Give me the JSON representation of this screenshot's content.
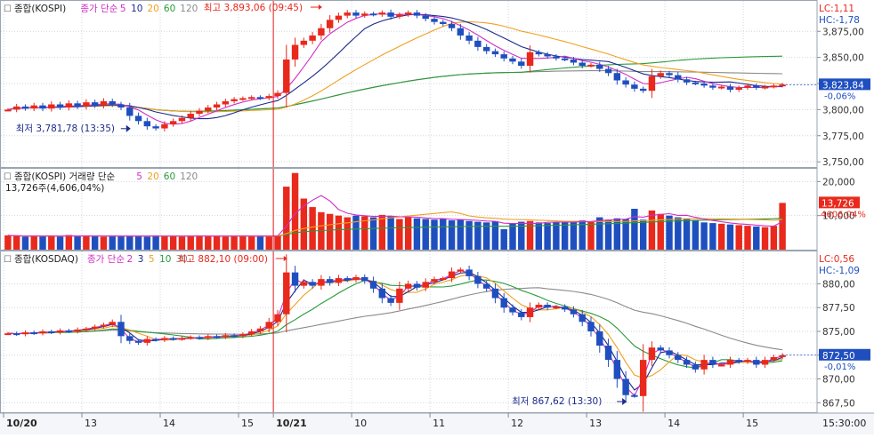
{
  "colors": {
    "up": "#e8291c",
    "down": "#1f4fbf",
    "ma5": "#d12ec7",
    "ma10": "#1c2a8c",
    "ma20": "#f0a020",
    "ma60": "#2a9a3a",
    "ma120": "#8a8a8a",
    "grid": "#cfd6e0",
    "marker": "#e41a1a"
  },
  "x_axis": {
    "labels": [
      {
        "text": "10/20",
        "x": 0,
        "bold": true
      },
      {
        "text": "13",
        "x": 9
      },
      {
        "text": "14",
        "x": 18
      },
      {
        "text": "15",
        "x": 27
      },
      {
        "text": "10/21",
        "x": 31,
        "bold": true
      },
      {
        "text": "10",
        "x": 40
      },
      {
        "text": "11",
        "x": 49
      },
      {
        "text": "12",
        "x": 58
      },
      {
        "text": "13",
        "x": 67
      },
      {
        "text": "14",
        "x": 76
      },
      {
        "text": "15",
        "x": 85
      }
    ],
    "end_time": "15:30:00"
  },
  "chart_data": [
    {
      "type": "candlestick",
      "title": "종합(KOSPI)",
      "legend": [
        {
          "text": "종가 단순",
          "color": "#d12ec7"
        },
        {
          "text": "5",
          "color": "#d12ec7"
        },
        {
          "text": "10",
          "color": "#1c2a8c"
        },
        {
          "text": "20",
          "color": "#f0a020"
        },
        {
          "text": "60",
          "color": "#2a9a3a"
        },
        {
          "text": "120",
          "color": "#8a8a8a"
        }
      ],
      "lc": "LC:1,11",
      "hc": "HC:-1,78",
      "ylim": [
        3745,
        3905
      ],
      "y_ticks": [
        {
          "v": 3750,
          "t": "3,750,00"
        },
        {
          "v": 3775,
          "t": "3,775,00"
        },
        {
          "v": 3800,
          "t": "3,800,00"
        },
        {
          "v": 3825,
          "t": "3,825,00"
        },
        {
          "v": 3850,
          "t": "3,850,00"
        },
        {
          "v": 3875,
          "t": "3,875,00"
        }
      ],
      "current": {
        "price": 3823.84,
        "price_text": "3,823,84",
        "change_text": "-0,06%"
      },
      "annotations": {
        "high": {
          "text": "최고 3,893,06 (09:45)",
          "x": 36,
          "y": 3893.06
        },
        "low": {
          "text": "최저 3,781,78 (13:35)",
          "x": 14,
          "y": 3781.78
        }
      },
      "values": [
        3800,
        3803,
        3801,
        3804,
        3801,
        3805,
        3802,
        3806,
        3803,
        3807,
        3804,
        3808,
        3805,
        3802,
        3794,
        3789,
        3784,
        3782,
        3786,
        3789,
        3792,
        3796,
        3799,
        3802,
        3805,
        3808,
        3810,
        3811,
        3812,
        3811,
        3813,
        3816,
        3848,
        3862,
        3866,
        3871,
        3878,
        3886,
        3890,
        3893,
        3890,
        3892,
        3891,
        3893,
        3889,
        3891,
        3893,
        3890,
        3887,
        3884,
        3882,
        3878,
        3871,
        3866,
        3860,
        3856,
        3853,
        3849,
        3846,
        3842,
        3855,
        3853,
        3851,
        3849,
        3848,
        3845,
        3842,
        3843,
        3839,
        3835,
        3828,
        3824,
        3820,
        3818,
        3832,
        3835,
        3833,
        3829,
        3826,
        3825,
        3823,
        3821,
        3822,
        3819,
        3821,
        3823,
        3821,
        3822,
        3823,
        3824
      ]
    },
    {
      "type": "bar",
      "title": "종합(KOSPI) 거래량 단순",
      "legend": [
        {
          "text": "5",
          "color": "#d12ec7"
        },
        {
          "text": "20",
          "color": "#f0a020"
        },
        {
          "text": "60",
          "color": "#2a9a3a"
        },
        {
          "text": "120",
          "color": "#8a8a8a"
        }
      ],
      "subtitle": "13,726주(4,606,04%)",
      "ylim": [
        0,
        24000
      ],
      "y_ticks": [
        {
          "v": 20000,
          "t": "20,000"
        },
        {
          "v": 10000,
          "t": "10,000"
        }
      ],
      "current": {
        "value": 13726,
        "value_text": "13,726",
        "pct_text": "4606,04%"
      },
      "values": [
        4200,
        4000,
        3800,
        4100,
        3900,
        4200,
        3800,
        4300,
        3900,
        4100,
        4000,
        3800,
        4200,
        3900,
        4100,
        4000,
        3800,
        4200,
        3900,
        4100,
        3800,
        4000,
        4200,
        3900,
        4100,
        3800,
        4000,
        4200,
        3900,
        4100,
        3800,
        4200,
        18500,
        22500,
        15000,
        12500,
        11000,
        10500,
        10000,
        9500,
        10000,
        9800,
        9500,
        10200,
        9800,
        9000,
        9500,
        9200,
        9000,
        8800,
        9000,
        8600,
        8800,
        8400,
        8200,
        8000,
        8300,
        6000,
        7800,
        8200,
        8400,
        8000,
        7800,
        8200,
        8000,
        8400,
        8600,
        8200,
        9500,
        8800,
        9200,
        9000,
        12000,
        8800,
        11500,
        10500,
        10000,
        9500,
        9000,
        8500,
        8000,
        7800,
        7600,
        7400,
        7200,
        7000,
        6800,
        6600,
        7000,
        13726
      ]
    },
    {
      "type": "candlestick",
      "title": "종합(KOSDAQ)",
      "legend": [
        {
          "text": "종가 단순",
          "color": "#d12ec7"
        },
        {
          "text": "2",
          "color": "#d12ec7"
        },
        {
          "text": "3",
          "color": "#1c2a8c"
        },
        {
          "text": "5",
          "color": "#f0a020"
        },
        {
          "text": "10",
          "color": "#2a9a3a"
        },
        {
          "text": "30",
          "color": "#8a8a8a"
        }
      ],
      "lc": "LC:0,56",
      "hc": "HC:-1,09",
      "ylim": [
        866.5,
        883.5
      ],
      "y_ticks": [
        {
          "v": 867.5,
          "t": "867,50"
        },
        {
          "v": 870,
          "t": "870,00"
        },
        {
          "v": 872.5,
          "t": "872,50"
        },
        {
          "v": 875,
          "t": "875,00"
        },
        {
          "v": 877.5,
          "t": "877,50"
        },
        {
          "v": 880,
          "t": "880,00"
        }
      ],
      "current": {
        "price": 872.5,
        "price_text": "872,50",
        "change_text": "-0,01%"
      },
      "annotations": {
        "high": {
          "text": "최고 882,10 (09:00)",
          "x": 32,
          "y": 882.1
        },
        "low": {
          "text": "최저 867,62 (13:30)",
          "x": 71,
          "y": 867.62
        }
      },
      "values": [
        874.8,
        874.7,
        874.9,
        874.8,
        875,
        874.9,
        875.1,
        875,
        875.2,
        875.3,
        875.5,
        875.7,
        876,
        874.5,
        874,
        873.8,
        874.2,
        874.1,
        874.3,
        874.2,
        874.3,
        874.4,
        874.3,
        874.5,
        874.4,
        874.6,
        874.5,
        874.7,
        875,
        875.3,
        876,
        876.8,
        881.2,
        879.8,
        880.2,
        879.8,
        880.5,
        880.1,
        880.6,
        880.4,
        880.7,
        880.3,
        879.5,
        878.5,
        878,
        879.5,
        880,
        879.6,
        880.2,
        880.5,
        880.6,
        881.3,
        881.5,
        880.8,
        880,
        879.5,
        878.5,
        877.5,
        877,
        876.5,
        877.5,
        877.8,
        877.5,
        877.6,
        877.3,
        876.8,
        876,
        875,
        873.5,
        872,
        870,
        868.3,
        868.2,
        872,
        873.3,
        873,
        872.5,
        872,
        871.5,
        871,
        872,
        871.5,
        871.5,
        872,
        871.8,
        872,
        871.5,
        872,
        872.3,
        872.5
      ]
    }
  ]
}
